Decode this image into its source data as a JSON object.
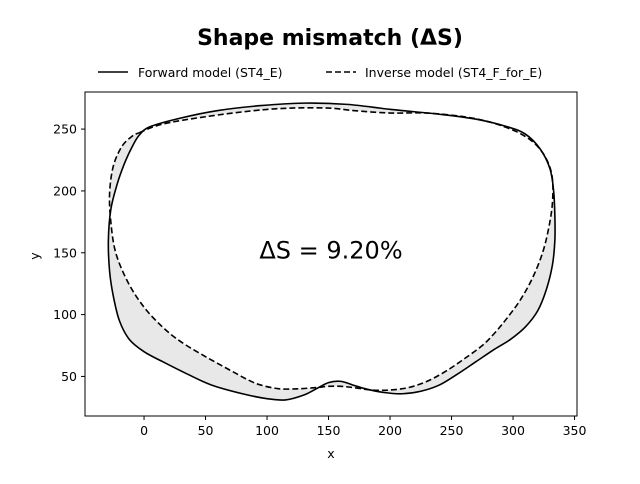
{
  "chart_data": {
    "type": "line",
    "title": "Shape mismatch (ΔS)",
    "xlabel": "x",
    "ylabel": "y",
    "xlim": [
      -48,
      352
    ],
    "ylim": [
      18,
      280
    ],
    "xticks": [
      0,
      50,
      100,
      150,
      200,
      250,
      300,
      350
    ],
    "yticks": [
      50,
      100,
      150,
      200,
      250
    ],
    "grid": false,
    "legend_placement": "top-center, above plot",
    "annotation": {
      "text": "ΔS = 9.20%",
      "x": 152,
      "y": 152
    },
    "fill_between_color": "#e8e8e8",
    "series": [
      {
        "name": "Forward model (ST4_E)",
        "style": "solid",
        "color": "#000000",
        "points": [
          [
            5,
            252
          ],
          [
            30,
            259
          ],
          [
            60,
            265
          ],
          [
            95,
            269
          ],
          [
            130,
            271
          ],
          [
            165,
            270
          ],
          [
            200,
            266
          ],
          [
            240,
            262
          ],
          [
            270,
            258
          ],
          [
            295,
            252
          ],
          [
            310,
            246
          ],
          [
            322,
            234
          ],
          [
            330,
            218
          ],
          [
            333,
            200
          ],
          [
            334,
            180
          ],
          [
            334,
            160
          ],
          [
            332,
            140
          ],
          [
            327,
            120
          ],
          [
            320,
            103
          ],
          [
            310,
            90
          ],
          [
            298,
            80
          ],
          [
            285,
            72
          ],
          [
            270,
            62
          ],
          [
            255,
            52
          ],
          [
            240,
            43
          ],
          [
            225,
            38
          ],
          [
            210,
            36
          ],
          [
            195,
            37
          ],
          [
            180,
            40
          ],
          [
            170,
            43
          ],
          [
            160,
            46
          ],
          [
            150,
            45
          ],
          [
            140,
            40
          ],
          [
            130,
            35
          ],
          [
            115,
            31
          ],
          [
            100,
            32
          ],
          [
            80,
            36
          ],
          [
            55,
            43
          ],
          [
            35,
            52
          ],
          [
            15,
            62
          ],
          [
            0,
            70
          ],
          [
            -12,
            80
          ],
          [
            -20,
            95
          ],
          [
            -25,
            115
          ],
          [
            -28,
            135
          ],
          [
            -29,
            160
          ],
          [
            -27,
            185
          ],
          [
            -22,
            205
          ],
          [
            -16,
            222
          ],
          [
            -10,
            235
          ],
          [
            -4,
            245
          ],
          [
            5,
            252
          ]
        ]
      },
      {
        "name": "Inverse model (ST4_F_for_E)",
        "style": "dashed",
        "color": "#000000",
        "points": [
          [
            -4,
            247
          ],
          [
            15,
            254
          ],
          [
            50,
            260
          ],
          [
            90,
            265
          ],
          [
            120,
            267
          ],
          [
            150,
            267
          ],
          [
            170,
            265
          ],
          [
            200,
            263
          ],
          [
            230,
            263
          ],
          [
            260,
            260
          ],
          [
            280,
            256
          ],
          [
            298,
            250
          ],
          [
            310,
            244
          ],
          [
            320,
            236
          ],
          [
            328,
            224
          ],
          [
            332,
            210
          ],
          [
            332,
            190
          ],
          [
            329,
            170
          ],
          [
            324,
            150
          ],
          [
            316,
            130
          ],
          [
            306,
            112
          ],
          [
            295,
            97
          ],
          [
            285,
            85
          ],
          [
            275,
            75
          ],
          [
            260,
            64
          ],
          [
            245,
            54
          ],
          [
            230,
            46
          ],
          [
            215,
            41
          ],
          [
            200,
            39
          ],
          [
            185,
            39
          ],
          [
            170,
            41
          ],
          [
            160,
            42
          ],
          [
            150,
            42
          ],
          [
            140,
            41
          ],
          [
            125,
            40
          ],
          [
            110,
            40
          ],
          [
            95,
            43
          ],
          [
            85,
            47
          ],
          [
            70,
            55
          ],
          [
            50,
            66
          ],
          [
            30,
            78
          ],
          [
            15,
            90
          ],
          [
            0,
            106
          ],
          [
            -13,
            126
          ],
          [
            -23,
            150
          ],
          [
            -27,
            175
          ],
          [
            -28,
            198
          ],
          [
            -25,
            220
          ],
          [
            -18,
            236
          ],
          [
            -10,
            244
          ],
          [
            -4,
            247
          ]
        ]
      }
    ]
  }
}
